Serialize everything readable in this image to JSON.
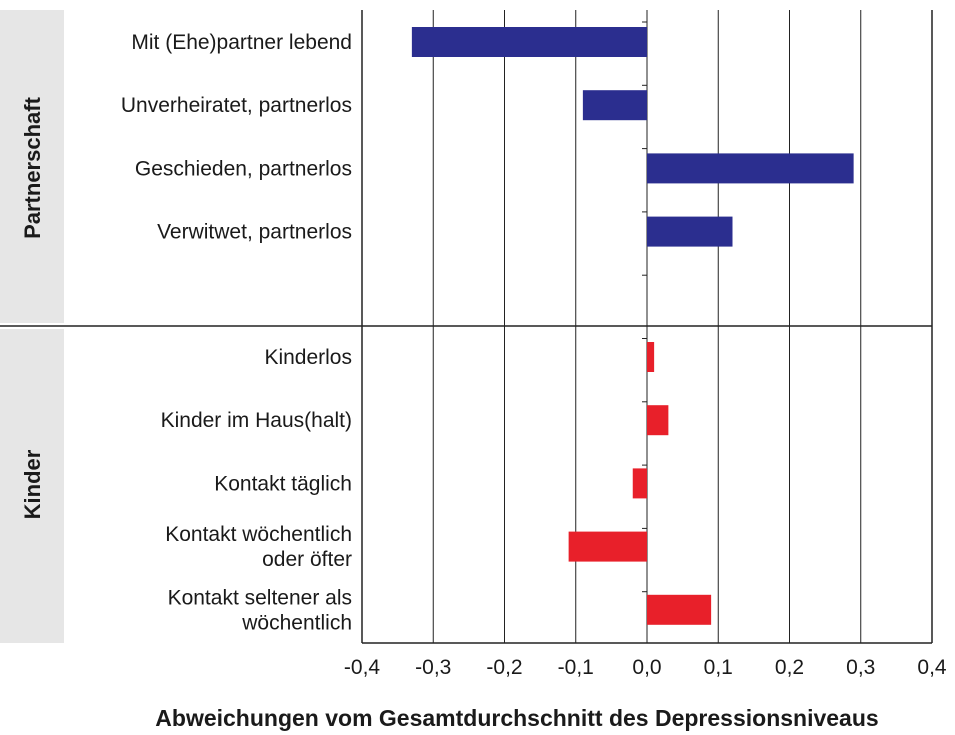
{
  "chart_data": {
    "type": "bar",
    "orientation": "horizontal",
    "xlabel": "Abweichungen vom Gesamtdurchschnitt des Depressionsniveaus",
    "xlim": [
      -0.4,
      0.4
    ],
    "xticks": [
      -0.4,
      -0.3,
      -0.2,
      -0.1,
      0.0,
      0.1,
      0.2,
      0.3,
      0.4
    ],
    "xtick_labels": [
      "-0,4",
      "-0,3",
      "-0,2",
      "-0,1",
      "0,0",
      "0,1",
      "0,2",
      "0,3",
      "0,4"
    ],
    "grid": "vertical",
    "legend": "none",
    "groups": [
      {
        "name": "Partnerschaft",
        "color": "#2b2e8f",
        "categories": [
          [
            "Mit (Ehe)partner lebend"
          ],
          [
            "Unverheiratet, partnerlos"
          ],
          [
            "Geschieden, partnerlos"
          ],
          [
            "Verwitwet, partnerlos"
          ]
        ],
        "values": [
          -0.33,
          -0.09,
          0.29,
          0.12
        ]
      },
      {
        "name": "Kinder",
        "color": "#e8202a",
        "categories": [
          [
            "Kinderlos"
          ],
          [
            "Kinder im Haus(halt)"
          ],
          [
            "Kontakt täglich"
          ],
          [
            "Kontakt wöchentlich",
            "oder öfter"
          ],
          [
            "Kontakt seltener als",
            "wöchentlich"
          ]
        ],
        "values": [
          0.01,
          0.03,
          -0.02,
          -0.11,
          0.09
        ]
      }
    ]
  }
}
